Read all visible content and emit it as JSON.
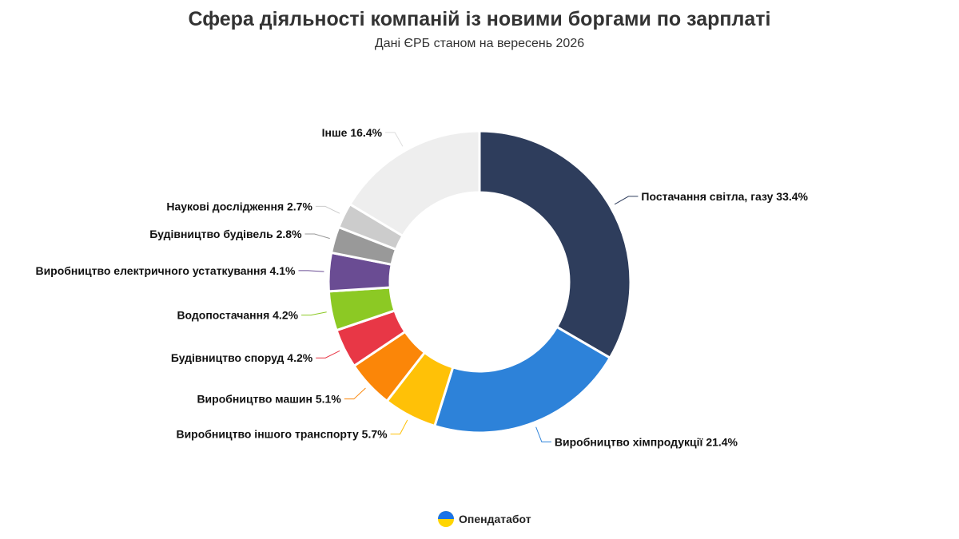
{
  "title": "Сфера діяльності компаній із новими боргами по зарплаті",
  "subtitle": "Дані ЄРБ станом на вересень 2026",
  "brand": "Опендатабот",
  "chart_data": {
    "type": "pie",
    "variant": "donut",
    "unit": "%",
    "slices": [
      {
        "label": "Постачання світла, газу",
        "value": 33.4,
        "color": "#2e3d5c"
      },
      {
        "label": "Виробництво хімпродукції",
        "value": 21.4,
        "color": "#2d82d9"
      },
      {
        "label": "Виробництво іншого транспорту",
        "value": 5.7,
        "color": "#ffc107"
      },
      {
        "label": "Виробництво машин",
        "value": 5.1,
        "color": "#fb8608"
      },
      {
        "label": "Будівництво споруд",
        "value": 4.2,
        "color": "#e83746"
      },
      {
        "label": "Водопостачання",
        "value": 4.2,
        "color": "#8cc924"
      },
      {
        "label": "Виробництво електричного устаткування",
        "value": 4.1,
        "color": "#6a4c93"
      },
      {
        "label": "Будівництво будівель",
        "value": 2.8,
        "color": "#999999"
      },
      {
        "label": "Наукові дослідження",
        "value": 2.7,
        "color": "#cccccc"
      },
      {
        "label": "Інше",
        "value": 16.4,
        "color": "#eeeeee"
      }
    ]
  }
}
